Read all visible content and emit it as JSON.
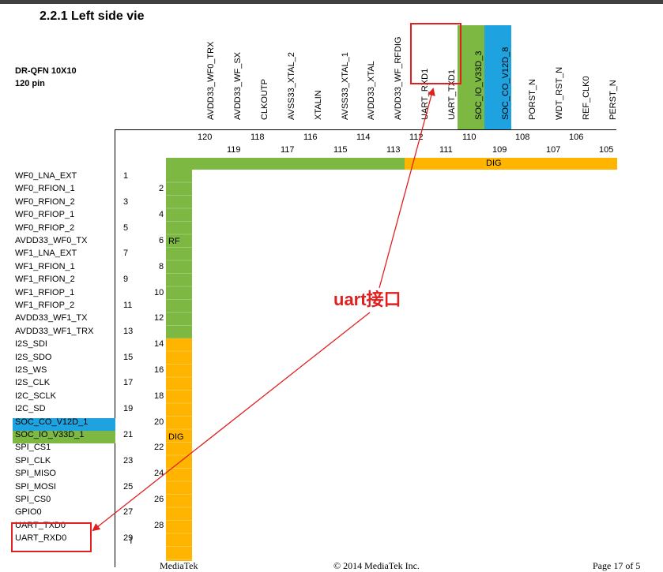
{
  "section_title": "2.2.1 Left side vie",
  "package": {
    "line1": "DR-QFN 10X10",
    "line2": "120 pin"
  },
  "top_signals": [
    "AVDD33_WF0_TRX",
    "AVDD33_WF_SX",
    "CLKOUTP",
    "AVSS33_XTAL_2",
    "XTALIN",
    "AVSS33_XTAL_1",
    "AVDD33_XTAL",
    "AVDD33_WF_RFDIG",
    "UART_RXD1",
    "UART_TXD1",
    "SOC_IO_V33D_3",
    "SOC_CO_V12D_8",
    "PORST_N",
    "WDT_RST_N",
    "REF_CLK0",
    "PERST_N"
  ],
  "top_pins_upper": [
    "120",
    "118",
    "116",
    "114",
    "112",
    "110",
    "108",
    "106"
  ],
  "top_pins_lower": [
    "119",
    "117",
    "115",
    "113",
    "111",
    "109",
    "107",
    "105"
  ],
  "left_signals": [
    "WF0_LNA_EXT",
    "WF0_RFION_1",
    "WF0_RFION_2",
    "WF0_RFIOP_1",
    "WF0_RFIOP_2",
    "AVDD33_WF0_TX",
    "WF1_LNA_EXT",
    "WF1_RFION_1",
    "WF1_RFION_2",
    "WF1_RFIOP_1",
    "WF1_RFIOP_2",
    "AVDD33_WF1_TX",
    "AVDD33_WF1_TRX",
    "I2S_SDI",
    "I2S_SDO",
    "I2S_WS",
    "I2S_CLK",
    "I2C_SCLK",
    "I2C_SD",
    "SOC_CO_V12D_1",
    "SOC_IO_V33D_1",
    "SPI_CS1",
    "SPI_CLK",
    "SPI_MISO",
    "SPI_MOSI",
    "SPI_CS0",
    "GPIO0",
    "UART_TXD0",
    "UART_RXD0"
  ],
  "left_pins_odd": [
    "1",
    "3",
    "5",
    "7",
    "9",
    "11",
    "13",
    "15",
    "17",
    "19",
    "21",
    "23",
    "25",
    "27",
    "29"
  ],
  "left_pins_even": [
    "2",
    "4",
    "6",
    "8",
    "10",
    "12",
    "14",
    "16",
    "18",
    "20",
    "22",
    "24",
    "26",
    "28"
  ],
  "bands": {
    "rf": "RF",
    "dig_top": "DIG",
    "dig_left": "DIG"
  },
  "annotation": "uart接口",
  "colors": {
    "green": "#7db842",
    "blue": "#1fa2e0",
    "orange": "#ffb400",
    "red": "#e02020"
  },
  "footer": {
    "left": "MediaTek",
    "center": "© 2014 MediaTek Inc.",
    "right": "Page 17 of 5"
  }
}
